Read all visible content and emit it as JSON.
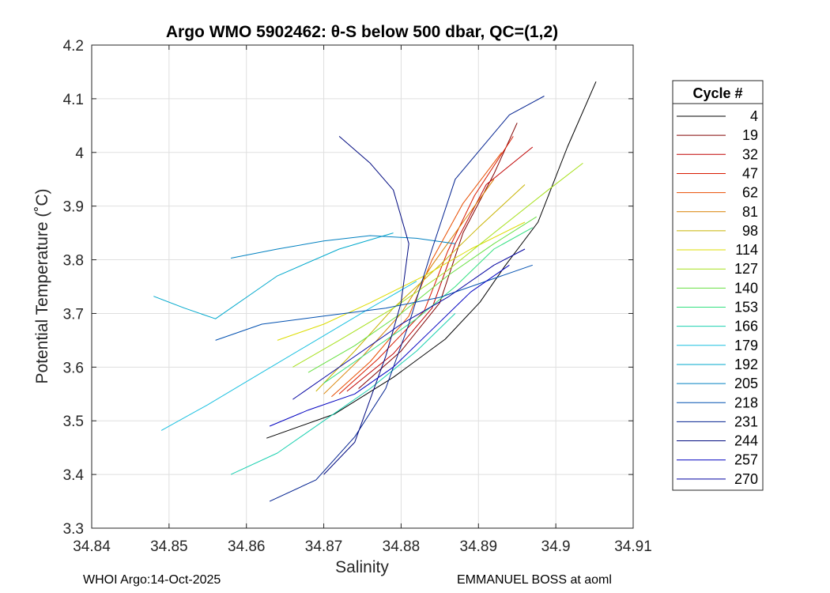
{
  "chart_data": {
    "type": "line",
    "title": "Argo WMO 5902462: θ-S below 500 dbar,  QC=(1,2)",
    "xlabel": "Salinity",
    "ylabel": "Potential Temperature (˚C)",
    "xlim": [
      34.84,
      34.91
    ],
    "ylim": [
      3.3,
      4.2
    ],
    "xticks": [
      "34.84",
      "34.85",
      "34.86",
      "34.87",
      "34.88",
      "34.89",
      "34.9",
      "34.91"
    ],
    "yticks": [
      "3.3",
      "3.4",
      "3.5",
      "3.6",
      "3.7",
      "3.8",
      "3.9",
      "4",
      "4.1",
      "4.2"
    ],
    "grid": true,
    "legend": {
      "title": "Cycle #",
      "placement": "right",
      "entries": [
        "4",
        "19",
        "32",
        "47",
        "62",
        "81",
        "98",
        "114",
        "127",
        "140",
        "153",
        "166",
        "179",
        "192",
        "205",
        "218",
        "231",
        "244",
        "257",
        "270"
      ],
      "colors": [
        "#000000",
        "#800000",
        "#bf0000",
        "#d81a00",
        "#e84d00",
        "#d98000",
        "#c8b300",
        "#dcdc00",
        "#a6e01a",
        "#66e040",
        "#33e080",
        "#1ad0b0",
        "#1ac0e0",
        "#00a8cc",
        "#0080c0",
        "#0050b0",
        "#00208f",
        "#000a80",
        "#0000c0",
        "#0000a0"
      ]
    },
    "series": [
      {
        "values": [
          [
            34.8626,
            3.4677
          ],
          [
            34.8714,
            3.5127
          ],
          [
            34.879,
            3.581
          ],
          [
            34.8857,
            3.652
          ],
          [
            34.8902,
            3.721
          ],
          [
            34.8934,
            3.788
          ],
          [
            34.8977,
            3.87
          ],
          [
            34.9015,
            4.01
          ],
          [
            34.9052,
            4.132
          ]
        ]
      },
      {
        "values": [
          [
            34.8745,
            3.56
          ],
          [
            34.88,
            3.63
          ],
          [
            34.885,
            3.72
          ],
          [
            34.888,
            3.85
          ],
          [
            34.892,
            3.96
          ],
          [
            34.895,
            4.055
          ]
        ]
      },
      {
        "values": [
          [
            34.873,
            3.555
          ],
          [
            34.879,
            3.625
          ],
          [
            34.884,
            3.71
          ],
          [
            34.887,
            3.83
          ],
          [
            34.891,
            3.94
          ],
          [
            34.897,
            4.01
          ]
        ]
      },
      {
        "values": [
          [
            34.872,
            3.55
          ],
          [
            34.877,
            3.615
          ],
          [
            34.883,
            3.705
          ],
          [
            34.886,
            3.815
          ],
          [
            34.8895,
            3.92
          ],
          [
            34.8945,
            4.03
          ]
        ]
      },
      {
        "values": [
          [
            34.871,
            3.545
          ],
          [
            34.876,
            3.61
          ],
          [
            34.881,
            3.695
          ],
          [
            34.884,
            3.8
          ],
          [
            34.888,
            3.905
          ],
          [
            34.893,
            4.0
          ]
        ]
      },
      {
        "values": [
          [
            34.87,
            3.55
          ],
          [
            34.875,
            3.62
          ],
          [
            34.88,
            3.7
          ],
          [
            34.884,
            3.79
          ],
          [
            34.888,
            3.87
          ],
          [
            34.892,
            3.95
          ]
        ]
      },
      {
        "values": [
          [
            34.869,
            3.555
          ],
          [
            34.874,
            3.63
          ],
          [
            34.879,
            3.71
          ],
          [
            34.885,
            3.79
          ],
          [
            34.89,
            3.86
          ],
          [
            34.896,
            3.94
          ]
        ]
      },
      {
        "values": [
          [
            34.864,
            3.65
          ],
          [
            34.87,
            3.68
          ],
          [
            34.876,
            3.72
          ],
          [
            34.883,
            3.77
          ],
          [
            34.889,
            3.82
          ],
          [
            34.896,
            3.87
          ]
        ]
      },
      {
        "values": [
          [
            34.866,
            3.6
          ],
          [
            34.872,
            3.65
          ],
          [
            34.879,
            3.71
          ],
          [
            34.886,
            3.78
          ],
          [
            34.892,
            3.85
          ],
          [
            34.899,
            3.93
          ],
          [
            34.9035,
            3.98
          ]
        ]
      },
      {
        "values": [
          [
            34.868,
            3.59
          ],
          [
            34.874,
            3.64
          ],
          [
            34.88,
            3.7
          ],
          [
            34.886,
            3.77
          ],
          [
            34.892,
            3.83
          ],
          [
            34.8975,
            3.88
          ]
        ]
      },
      {
        "values": [
          [
            34.87,
            3.57
          ],
          [
            34.876,
            3.63
          ],
          [
            34.882,
            3.69
          ],
          [
            34.887,
            3.75
          ],
          [
            34.892,
            3.82
          ],
          [
            34.897,
            3.86
          ]
        ]
      },
      {
        "values": [
          [
            34.858,
            3.4
          ],
          [
            34.864,
            3.44
          ],
          [
            34.87,
            3.5
          ],
          [
            34.876,
            3.56
          ],
          [
            34.882,
            3.63
          ],
          [
            34.887,
            3.7
          ]
        ]
      },
      {
        "values": [
          [
            34.849,
            3.482
          ],
          [
            34.855,
            3.53
          ],
          [
            34.862,
            3.59
          ],
          [
            34.869,
            3.65
          ],
          [
            34.876,
            3.71
          ],
          [
            34.882,
            3.76
          ]
        ]
      },
      {
        "values": [
          [
            34.848,
            3.732
          ],
          [
            34.852,
            3.71
          ],
          [
            34.856,
            3.69
          ],
          [
            34.86,
            3.73
          ],
          [
            34.864,
            3.77
          ],
          [
            34.872,
            3.82
          ],
          [
            34.879,
            3.85
          ]
        ]
      },
      {
        "values": [
          [
            34.858,
            3.803
          ],
          [
            34.864,
            3.82
          ],
          [
            34.87,
            3.835
          ],
          [
            34.876,
            3.845
          ],
          [
            34.882,
            3.84
          ],
          [
            34.887,
            3.83
          ]
        ]
      },
      {
        "values": [
          [
            34.856,
            3.65
          ],
          [
            34.862,
            3.68
          ],
          [
            34.87,
            3.695
          ],
          [
            34.878,
            3.71
          ],
          [
            34.885,
            3.73
          ],
          [
            34.893,
            3.77
          ],
          [
            34.897,
            3.79
          ]
        ]
      },
      {
        "values": [
          [
            34.863,
            3.35
          ],
          [
            34.869,
            3.39
          ],
          [
            34.874,
            3.47
          ],
          [
            34.878,
            3.56
          ],
          [
            34.881,
            3.68
          ],
          [
            34.884,
            3.82
          ],
          [
            34.887,
            3.95
          ],
          [
            34.894,
            4.07
          ],
          [
            34.8985,
            4.105
          ]
        ]
      },
      {
        "values": [
          [
            34.87,
            3.4
          ],
          [
            34.874,
            3.46
          ],
          [
            34.876,
            3.54
          ],
          [
            34.878,
            3.62
          ],
          [
            34.88,
            3.72
          ],
          [
            34.881,
            3.83
          ],
          [
            34.879,
            3.93
          ],
          [
            34.876,
            3.98
          ],
          [
            34.872,
            4.03
          ]
        ]
      },
      {
        "values": [
          [
            34.863,
            3.49
          ],
          [
            34.868,
            3.52
          ],
          [
            34.874,
            3.55
          ],
          [
            34.879,
            3.6
          ],
          [
            34.884,
            3.67
          ],
          [
            34.889,
            3.74
          ],
          [
            34.894,
            3.79
          ]
        ]
      },
      {
        "values": [
          [
            34.866,
            3.54
          ],
          [
            34.87,
            3.58
          ],
          [
            34.875,
            3.63
          ],
          [
            34.88,
            3.68
          ],
          [
            34.886,
            3.73
          ],
          [
            34.892,
            3.79
          ],
          [
            34.896,
            3.82
          ]
        ]
      }
    ]
  },
  "footer": {
    "left": "WHOI Argo:14-Oct-2025",
    "right": "EMMANUEL BOSS at aoml"
  }
}
